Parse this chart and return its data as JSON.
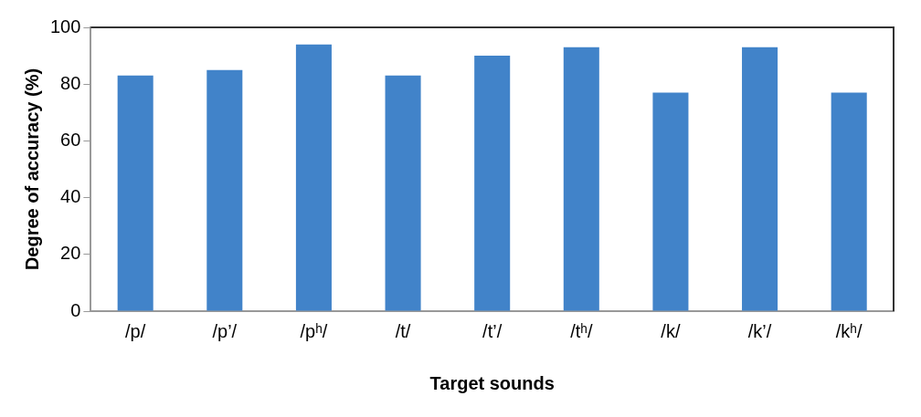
{
  "chart_data": {
    "type": "bar",
    "xlabel": "Target sounds",
    "ylabel": "Degree of accuracy (%)",
    "categories": [
      "/p/",
      "/p’/",
      "/pʰ/",
      "/t/",
      "/t’/",
      "/tʰ/",
      "/k/",
      "/k’/",
      "/kʰ/"
    ],
    "values": [
      83,
      85,
      94,
      83,
      90,
      93,
      77,
      93,
      77
    ],
    "color": "#4183c9",
    "ylim": [
      0,
      100
    ],
    "yticks": [
      0,
      20,
      40,
      60,
      80,
      100
    ],
    "grid": false,
    "legend": false
  }
}
